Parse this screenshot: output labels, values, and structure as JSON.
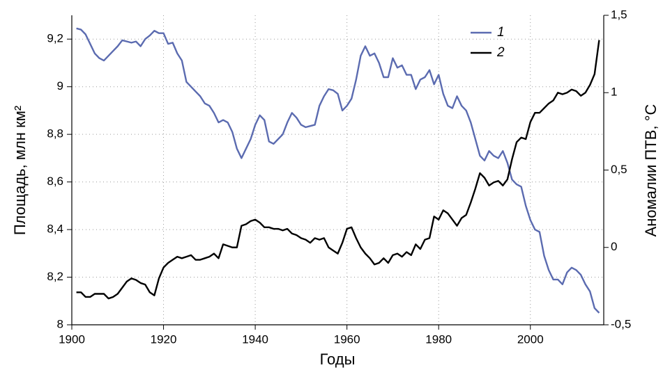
{
  "chart_data": {
    "type": "line",
    "x_label": "Годы",
    "y_label": "Площадь, млн км²",
    "y2_label": "Аномалии ПТВ, °С",
    "xlim": [
      1900,
      2016
    ],
    "xticks": [
      1900,
      1920,
      1940,
      1960,
      1980,
      2000
    ],
    "ylim": [
      8,
      9.3
    ],
    "yticks": [
      8,
      {
        "value": 8.2,
        "label": "8,2"
      },
      {
        "value": 8.4,
        "label": "8,4"
      },
      {
        "value": 8.6,
        "label": "8,6"
      },
      {
        "value": 8.8,
        "label": "8,8"
      },
      9,
      {
        "value": 9.2,
        "label": "9,2"
      }
    ],
    "y2lim": [
      -0.5,
      1.5
    ],
    "y2ticks": [
      {
        "value": -0.5,
        "label": "-0,5"
      },
      0,
      {
        "value": 0.5,
        "label": "0,5"
      },
      1,
      {
        "value": 1.5,
        "label": "1,5"
      }
    ],
    "grid": true,
    "legend": "upper right",
    "x": [
      1901,
      1902,
      1903,
      1904,
      1905,
      1906,
      1907,
      1908,
      1909,
      1910,
      1911,
      1912,
      1913,
      1914,
      1915,
      1916,
      1917,
      1918,
      1919,
      1920,
      1921,
      1922,
      1923,
      1924,
      1925,
      1926,
      1927,
      1928,
      1929,
      1930,
      1931,
      1932,
      1933,
      1934,
      1935,
      1936,
      1937,
      1938,
      1939,
      1940,
      1941,
      1942,
      1943,
      1944,
      1945,
      1946,
      1947,
      1948,
      1949,
      1950,
      1951,
      1952,
      1953,
      1954,
      1955,
      1956,
      1957,
      1958,
      1959,
      1960,
      1961,
      1962,
      1963,
      1964,
      1965,
      1966,
      1967,
      1968,
      1969,
      1970,
      1971,
      1972,
      1973,
      1974,
      1975,
      1976,
      1977,
      1978,
      1979,
      1980,
      1981,
      1982,
      1983,
      1984,
      1985,
      1986,
      1987,
      1988,
      1989,
      1990,
      1991,
      1992,
      1993,
      1994,
      1995,
      1996,
      1997,
      1998,
      1999,
      2000,
      2001,
      2002,
      2003,
      2004,
      2005,
      2006,
      2007,
      2008,
      2009,
      2010,
      2011,
      2012,
      2013,
      2014,
      2015
    ],
    "series": [
      {
        "name": "1",
        "color": "#5b6bb0",
        "values": [
          9.245,
          9.24,
          9.22,
          9.18,
          9.14,
          9.12,
          9.11,
          9.13,
          9.15,
          9.17,
          9.195,
          9.19,
          9.185,
          9.19,
          9.17,
          9.2,
          9.215,
          9.235,
          9.225,
          9.225,
          9.18,
          9.185,
          9.14,
          9.11,
          9.02,
          9.0,
          8.98,
          8.96,
          8.93,
          8.92,
          8.89,
          8.85,
          8.86,
          8.85,
          8.81,
          8.74,
          8.7,
          8.74,
          8.78,
          8.84,
          8.88,
          8.86,
          8.77,
          8.76,
          8.78,
          8.8,
          8.85,
          8.89,
          8.87,
          8.84,
          8.83,
          8.835,
          8.84,
          8.92,
          8.96,
          8.99,
          8.985,
          8.97,
          8.9,
          8.92,
          8.95,
          9.03,
          9.13,
          9.17,
          9.13,
          9.14,
          9.1,
          9.04,
          9.04,
          9.12,
          9.08,
          9.09,
          9.05,
          9.05,
          8.99,
          9.03,
          9.04,
          9.07,
          9.01,
          9.05,
          8.97,
          8.92,
          8.91,
          8.96,
          8.92,
          8.9,
          8.85,
          8.78,
          8.71,
          8.69,
          8.73,
          8.71,
          8.7,
          8.73,
          8.68,
          8.61,
          8.59,
          8.58,
          8.5,
          8.44,
          8.4,
          8.39,
          8.29,
          8.23,
          8.19,
          8.19,
          8.17,
          8.22,
          8.24,
          8.23,
          8.21,
          8.17,
          8.14,
          8.07,
          8.05
        ]
      },
      {
        "name": "2",
        "color": "#000000",
        "axis": "y2",
        "values": [
          -0.29,
          -0.29,
          -0.32,
          -0.32,
          -0.3,
          -0.3,
          -0.3,
          -0.33,
          -0.32,
          -0.3,
          -0.26,
          -0.22,
          -0.2,
          -0.21,
          -0.23,
          -0.24,
          -0.29,
          -0.31,
          -0.2,
          -0.13,
          -0.1,
          -0.08,
          -0.06,
          -0.07,
          -0.06,
          -0.05,
          -0.08,
          -0.08,
          -0.07,
          -0.06,
          -0.04,
          -0.07,
          0.02,
          0.01,
          0.0,
          0.0,
          0.14,
          0.15,
          0.17,
          0.18,
          0.16,
          0.13,
          0.13,
          0.12,
          0.12,
          0.11,
          0.12,
          0.09,
          0.08,
          0.06,
          0.05,
          0.03,
          0.06,
          0.05,
          0.06,
          0.0,
          -0.02,
          -0.04,
          0.03,
          0.12,
          0.13,
          0.06,
          0.0,
          -0.04,
          -0.07,
          -0.11,
          -0.1,
          -0.07,
          -0.1,
          -0.05,
          -0.04,
          -0.06,
          -0.03,
          -0.05,
          0.02,
          -0.01,
          0.05,
          0.06,
          0.2,
          0.18,
          0.24,
          0.22,
          0.18,
          0.14,
          0.19,
          0.21,
          0.29,
          0.38,
          0.48,
          0.45,
          0.4,
          0.42,
          0.43,
          0.4,
          0.44,
          0.57,
          0.68,
          0.71,
          0.7,
          0.81,
          0.87,
          0.87,
          0.9,
          0.93,
          0.95,
          1.0,
          0.99,
          1.0,
          1.02,
          1.01,
          0.98,
          1.0,
          1.05,
          1.12,
          1.34
        ]
      }
    ]
  }
}
